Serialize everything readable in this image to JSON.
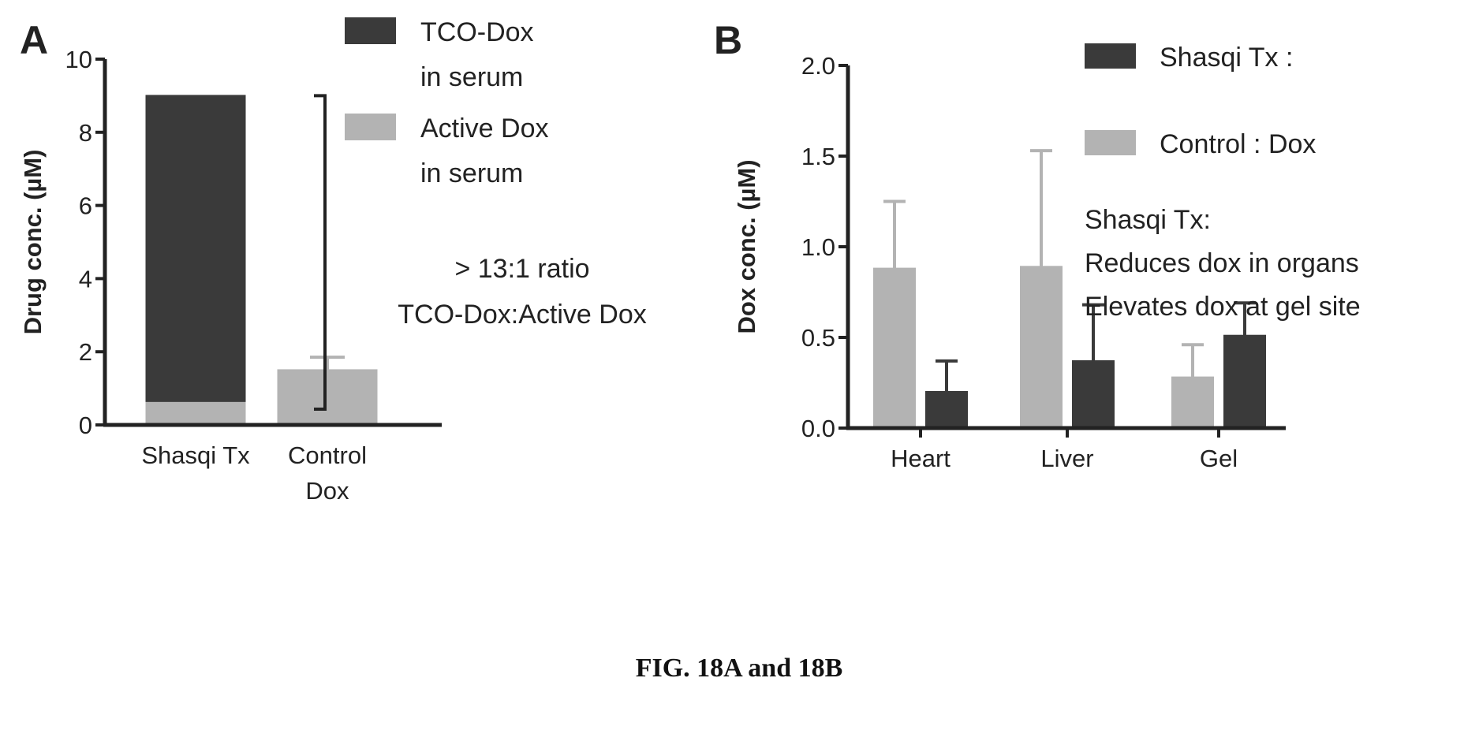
{
  "caption": "FIG. 18A and 18B",
  "colors": {
    "dark": "#3a3a3a",
    "light": "#b3b3b3",
    "axis": "#222222"
  },
  "chart_data": [
    {
      "panel_label": "A",
      "type": "bar",
      "stacked": true,
      "categories": [
        "Shasqi Tx",
        "Control Dox"
      ],
      "category_lines": [
        [
          "Shasqi Tx"
        ],
        [
          "Control",
          "Dox"
        ]
      ],
      "ylabel": "Drug conc. (µM)",
      "ylim": [
        0,
        10
      ],
      "yticks": [
        "0",
        "2",
        "4",
        "6",
        "8",
        "10"
      ],
      "series": [
        {
          "name": "Active Dox in serum",
          "legend_lines": [
            "Active Dox",
            "in serum"
          ],
          "color": "#b3b3b3",
          "values": [
            0.65,
            1.5
          ],
          "error": [
            null,
            0.35
          ]
        },
        {
          "name": "TCO-Dox in serum",
          "legend_lines": [
            "TCO-Dox",
            "in serum"
          ],
          "color": "#3a3a3a",
          "values": [
            8.35,
            0
          ],
          "error": [
            null,
            null
          ]
        }
      ],
      "legend_order": [
        "TCO-Dox in serum",
        "Active Dox in serum"
      ],
      "annotation": [
        "> 13:1 ratio",
        "TCO-Dox:Active Dox"
      ]
    },
    {
      "panel_label": "B",
      "type": "bar",
      "categories": [
        "Heart",
        "Liver",
        "Gel"
      ],
      "ylabel": "Dox conc. (µM)",
      "ylim": [
        0,
        2.0
      ],
      "yticks": [
        "0.0",
        "0.5",
        "1.0",
        "1.5",
        "2.0"
      ],
      "series": [
        {
          "name": "Control : Dox",
          "color": "#b3b3b3",
          "values": [
            0.88,
            0.89,
            0.28
          ],
          "error": [
            0.37,
            0.64,
            0.18
          ]
        },
        {
          "name": "Shasqi Tx :",
          "color": "#3a3a3a",
          "values": [
            0.2,
            0.37,
            0.51
          ],
          "error": [
            0.17,
            0.31,
            0.18
          ]
        }
      ],
      "legend_order": [
        "Shasqi Tx :",
        "Control : Dox"
      ],
      "annotation": [
        "Shasqi Tx:",
        "Reduces dox in organs",
        "Elevates dox at gel site"
      ]
    }
  ]
}
